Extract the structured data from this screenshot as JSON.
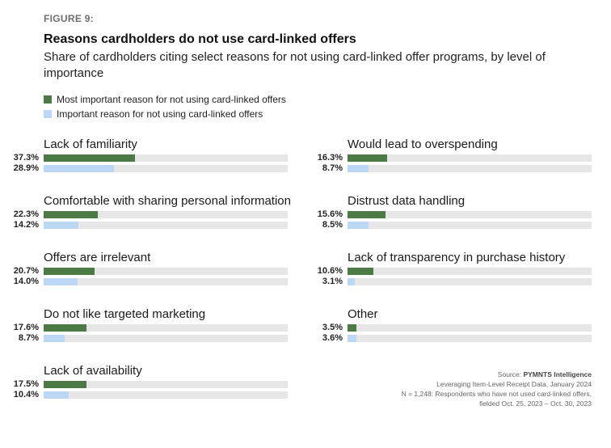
{
  "figure_label": "FIGURE 9:",
  "chart_data": {
    "type": "bar",
    "orientation": "horizontal",
    "title": "Reasons cardholders do not use card-linked offers",
    "subtitle": "Share of cardholders citing select reasons for not using card-linked offer programs, by level of importance",
    "xlim": [
      0,
      100
    ],
    "legend": [
      {
        "name": "Most important reason for not using card-linked offers",
        "color": "#4c7a45"
      },
      {
        "name": "Important reason for not using card-linked offers",
        "color": "#bcd7f5"
      }
    ],
    "categories": [
      "Lack of familiarity",
      "Comfortable with sharing personal information",
      "Offers are irrelevant",
      "Do not like targeted marketing",
      "Lack of availability",
      "Would lead to overspending",
      "Distrust data handling",
      "Lack of transparency in purchase history",
      "Other"
    ],
    "series": [
      {
        "name": "Most important reason for not using card-linked offers",
        "values": [
          37.3,
          22.3,
          20.7,
          17.6,
          17.5,
          16.3,
          15.6,
          10.6,
          3.5
        ],
        "labels": [
          "37.3%",
          "22.3%",
          "20.7%",
          "17.6%",
          "17.5%",
          "16.3%",
          "15.6%",
          "10.6%",
          "3.5%"
        ]
      },
      {
        "name": "Important reason for not using card-linked offers",
        "values": [
          28.9,
          14.2,
          14.0,
          8.7,
          10.4,
          8.7,
          8.5,
          3.1,
          3.6
        ],
        "labels": [
          "28.9%",
          "14.2%",
          "14.0%",
          "8.7%",
          "10.4%",
          "8.7%",
          "8.5%",
          "3.1%",
          "3.6%"
        ]
      }
    ]
  },
  "source": {
    "prefix": "Source: ",
    "org": "PYMNTS Intelligence",
    "line2": "Leveraging Item-Level Receipt Data, January 2024",
    "line3": "N = 1,248: Respondents who have not used card-linked offers,",
    "line4": "fielded Oct. 25, 2023 – Oct. 30, 2023"
  }
}
